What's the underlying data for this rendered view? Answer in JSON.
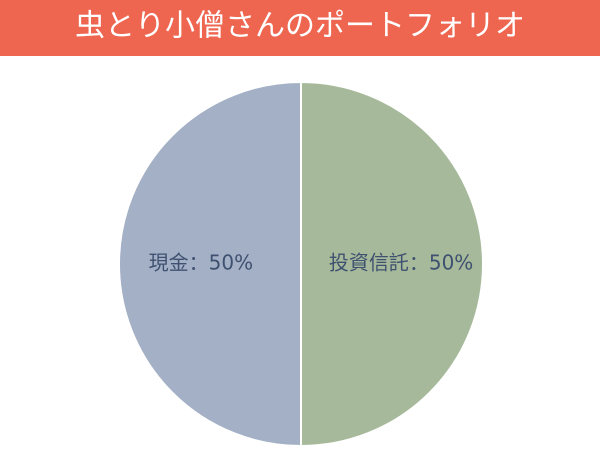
{
  "chart_data": {
    "type": "pie",
    "title": "虫とり小僧さんのポートフォリオ",
    "values": [
      50,
      50
    ],
    "value_labels": [
      "投資信託：50%",
      "現金：50%"
    ],
    "colors": [
      "#a6ba9b",
      "#a4b0c5"
    ]
  }
}
